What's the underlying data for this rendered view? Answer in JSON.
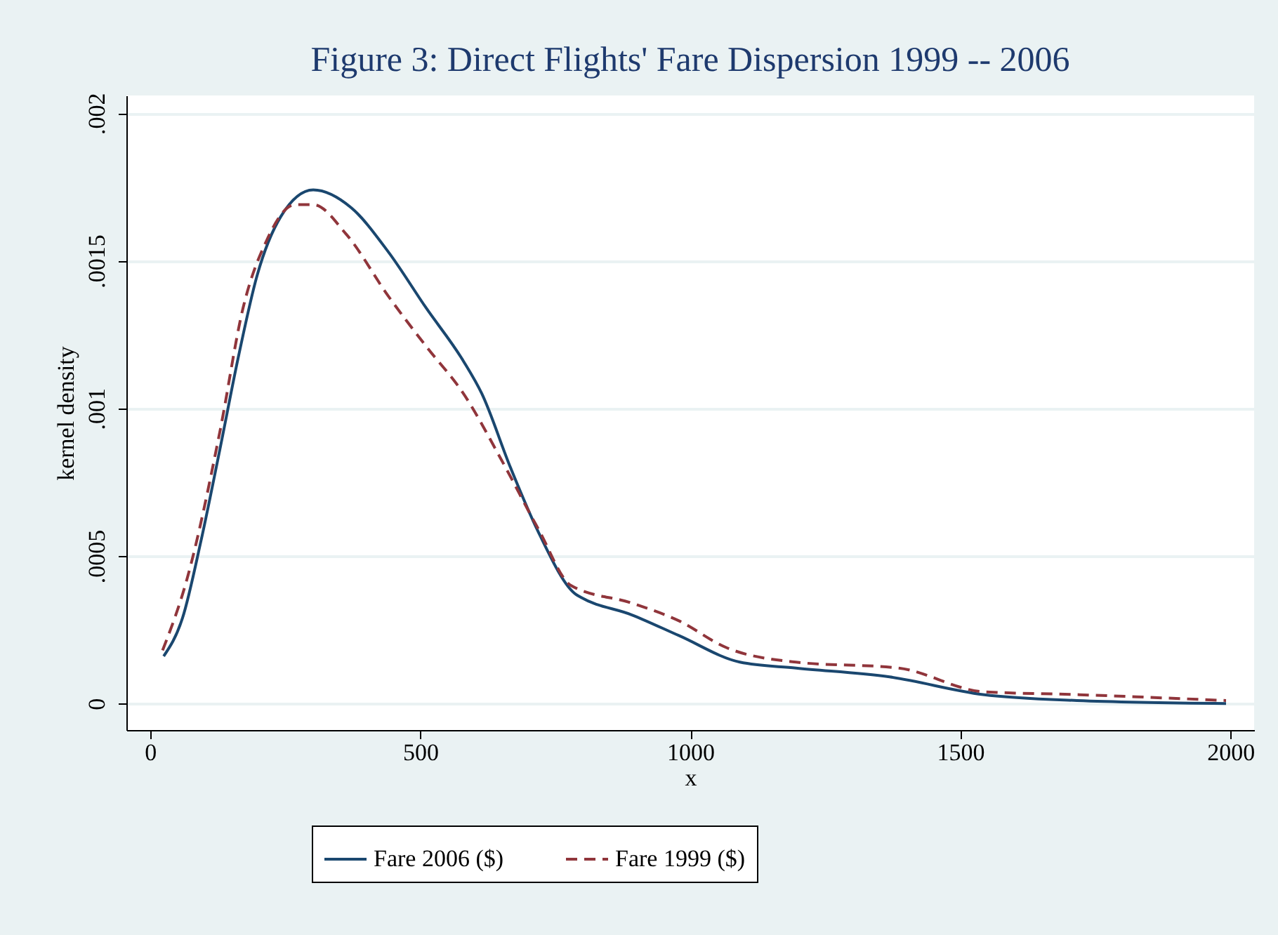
{
  "chart_data": {
    "type": "line",
    "title": "Figure 3: Direct Flights' Fare Dispersion 1999 -- 2006",
    "xlabel": "x",
    "ylabel": "kernel density",
    "xlim": [
      -44,
      2044
    ],
    "xticks": [
      0,
      500,
      1000,
      1500,
      2000
    ],
    "ylim": [
      -9e-05,
      0.00206
    ],
    "yticks": [
      {
        "value": 0,
        "label": "0"
      },
      {
        "value": 0.0005,
        "label": ".0005"
      },
      {
        "value": 0.001,
        "label": ".001"
      },
      {
        "value": 0.0015,
        "label": ".0015"
      },
      {
        "value": 0.002,
        "label": ".002"
      }
    ],
    "grid": "y",
    "legend": "bottom",
    "marker": "none",
    "series": [
      {
        "name": "Fare 2006 ($)",
        "color": "#1a476f",
        "line_style": "solid",
        "x": [
          25,
          60,
          94,
          129,
          164,
          198,
          242,
          302,
          372,
          441,
          511,
          580,
          614,
          667,
          719,
          788,
          797,
          892,
          979,
          1092,
          1196,
          1369,
          1542,
          1716,
          1992
        ],
        "values": [
          0.00016,
          0.00029,
          0.00055,
          0.00086,
          0.00118,
          0.00145,
          0.00165,
          0.00174,
          0.00168,
          0.00153,
          0.00134,
          0.00116,
          0.00105,
          0.0008,
          0.00058,
          0.00037,
          0.00036,
          0.0003,
          0.00023,
          0.00014,
          0.00012,
          9e-05,
          3e-05,
          1e-05,
          0
        ]
      },
      {
        "name": "Fare 1999 ($)",
        "color": "#90353b",
        "line_style": "dashed",
        "x": [
          23,
          68,
          129,
          172,
          216,
          268,
          302,
          363,
          441,
          511,
          580,
          649,
          719,
          779,
          892,
          979,
          1066,
          1196,
          1386,
          1542,
          1716,
          1992
        ],
        "values": [
          0.00018,
          0.00042,
          0.00092,
          0.00134,
          0.00157,
          0.00169,
          0.00169,
          0.00159,
          0.00138,
          0.00121,
          0.00105,
          0.00083,
          0.00059,
          0.0004,
          0.00034,
          0.00028,
          0.00019,
          0.00014,
          0.00012,
          4e-05,
          3e-05,
          1e-05
        ]
      }
    ]
  }
}
